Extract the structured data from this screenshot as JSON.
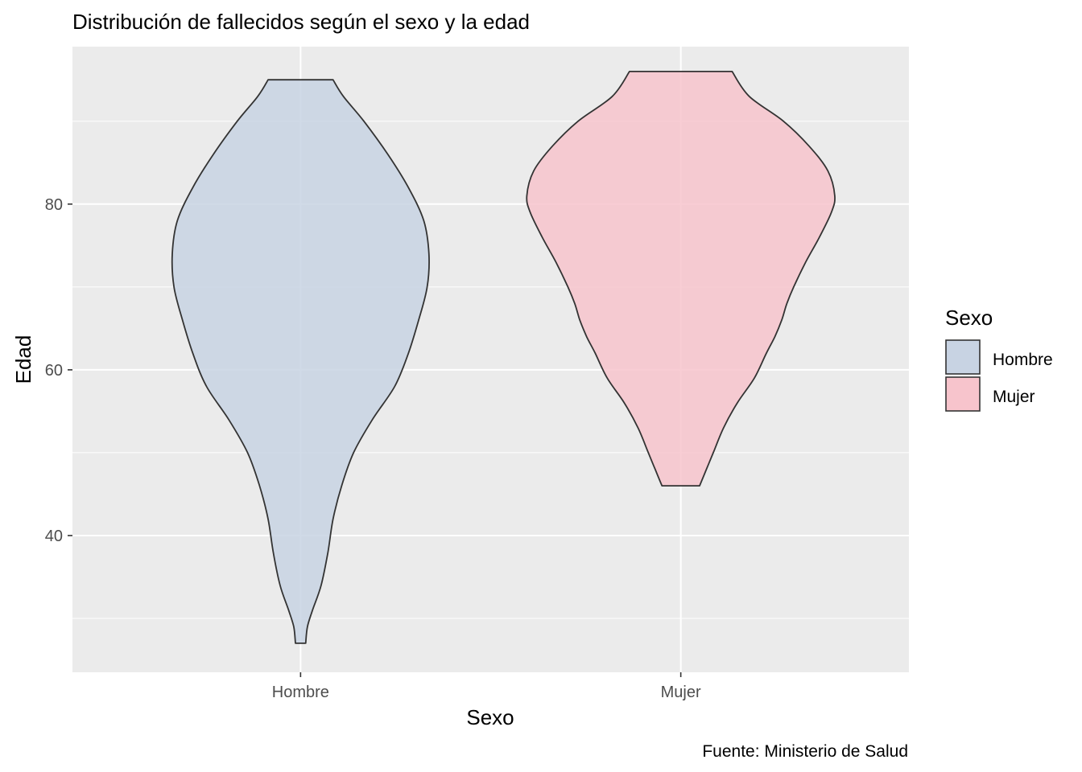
{
  "chart_data": {
    "type": "violin",
    "title": "Distribución de fallecidos según el sexo y la edad",
    "xlabel": "Sexo",
    "ylabel": "Edad",
    "caption": "Fuente: Ministerio de Salud",
    "categories": [
      "Hombre",
      "Mujer"
    ],
    "ylim": [
      23.5,
      99
    ],
    "yticks": [
      40,
      60,
      80
    ],
    "grid": true,
    "legend": {
      "title": "Sexo",
      "position": "right",
      "entries": [
        {
          "label": "Hombre",
          "color": "#c8d3e3"
        },
        {
          "label": "Mujer",
          "color": "#f7c4cc"
        }
      ]
    },
    "series": [
      {
        "name": "Hombre",
        "color": "#c8d3e3",
        "range": [
          27,
          95
        ],
        "density": [
          [
            27,
            0.03
          ],
          [
            29,
            0.04
          ],
          [
            31,
            0.07
          ],
          [
            34,
            0.12
          ],
          [
            38,
            0.16
          ],
          [
            42,
            0.19
          ],
          [
            46,
            0.24
          ],
          [
            50,
            0.31
          ],
          [
            54,
            0.42
          ],
          [
            58,
            0.55
          ],
          [
            62,
            0.63
          ],
          [
            66,
            0.69
          ],
          [
            70,
            0.74
          ],
          [
            74,
            0.75
          ],
          [
            78,
            0.72
          ],
          [
            82,
            0.63
          ],
          [
            86,
            0.51
          ],
          [
            90,
            0.37
          ],
          [
            93,
            0.25
          ],
          [
            95,
            0.19
          ]
        ]
      },
      {
        "name": "Mujer",
        "color": "#f7c4cc",
        "range": [
          46,
          96
        ],
        "density": [
          [
            46,
            0.11
          ],
          [
            48,
            0.15
          ],
          [
            50,
            0.19
          ],
          [
            53,
            0.25
          ],
          [
            56,
            0.33
          ],
          [
            59,
            0.43
          ],
          [
            62,
            0.5
          ],
          [
            64,
            0.55
          ],
          [
            66,
            0.59
          ],
          [
            68,
            0.62
          ],
          [
            70,
            0.66
          ],
          [
            73,
            0.73
          ],
          [
            76,
            0.81
          ],
          [
            79,
            0.88
          ],
          [
            81,
            0.9
          ],
          [
            84,
            0.86
          ],
          [
            87,
            0.75
          ],
          [
            90,
            0.6
          ],
          [
            93,
            0.4
          ],
          [
            96,
            0.3
          ]
        ]
      }
    ]
  }
}
